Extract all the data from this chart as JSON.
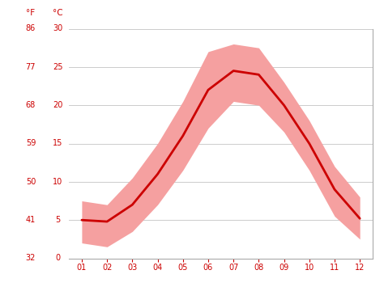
{
  "months": [
    1,
    2,
    3,
    4,
    5,
    6,
    7,
    8,
    9,
    10,
    11,
    12
  ],
  "avg_temp_c": [
    5.0,
    4.8,
    7.0,
    11.0,
    16.0,
    22.0,
    24.5,
    24.0,
    20.0,
    15.0,
    9.0,
    5.2
  ],
  "max_temp_c": [
    7.5,
    7.0,
    10.5,
    15.0,
    20.5,
    27.0,
    28.0,
    27.5,
    23.0,
    18.0,
    12.0,
    8.0
  ],
  "min_temp_c": [
    2.0,
    1.5,
    3.5,
    7.0,
    11.5,
    17.0,
    20.5,
    20.0,
    16.5,
    11.5,
    5.5,
    2.5
  ],
  "yticks_c": [
    0,
    5,
    10,
    15,
    20,
    25,
    30
  ],
  "yticks_f": [
    32,
    41,
    50,
    59,
    68,
    77,
    86
  ],
  "xtick_labels": [
    "01",
    "02",
    "03",
    "04",
    "05",
    "06",
    "07",
    "08",
    "09",
    "10",
    "11",
    "12"
  ],
  "line_color": "#cc0000",
  "band_color": "#f5a0a0",
  "axis_label_color": "#cc0000",
  "grid_color": "#cccccc",
  "bg_color": "#ffffff",
  "label_f": "°F",
  "label_c": "°C",
  "ylim_c": [
    0,
    30
  ],
  "xlim": [
    0.5,
    12.5
  ]
}
